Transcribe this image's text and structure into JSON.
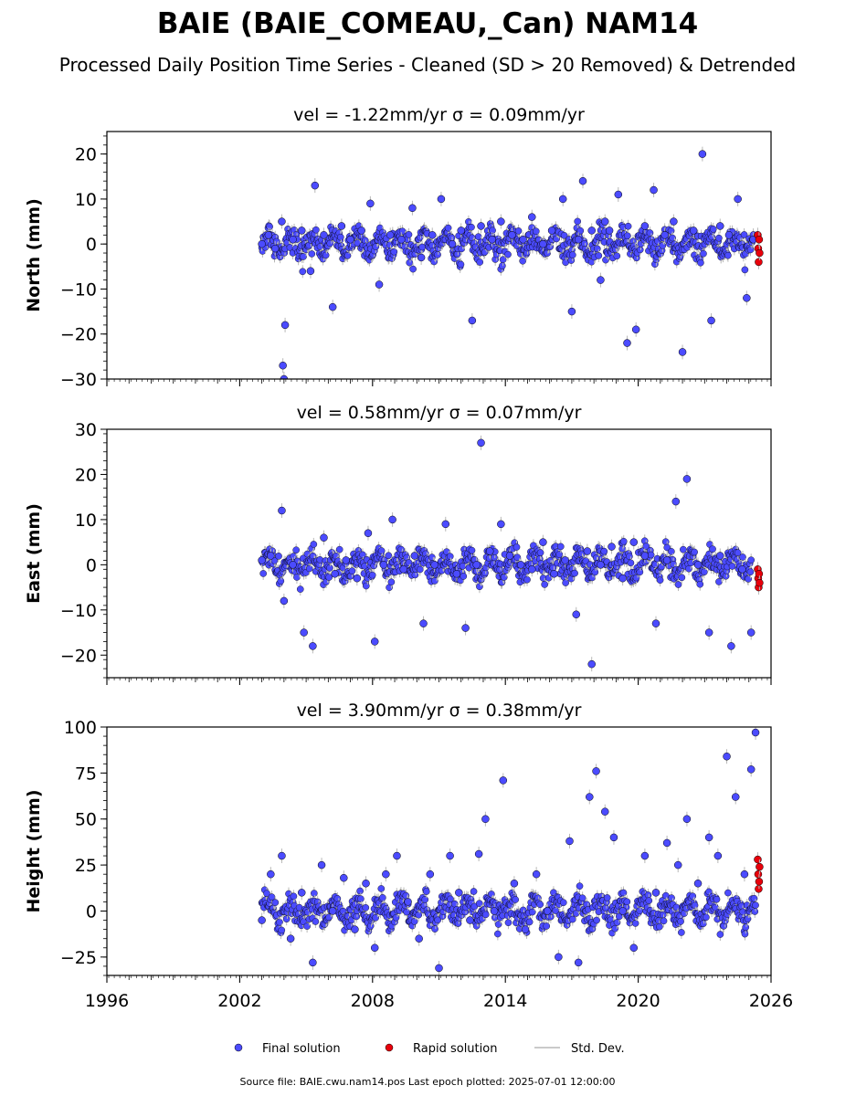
{
  "figure": {
    "title": "BAIE (BAIE_COMEAU,_Can) NAM14",
    "subtitle": "Processed Daily Position Time Series - Cleaned (SD > 20 Removed) & Detrended",
    "footer": "Source file: BAIE.cwu.nam14.pos  Last epoch plotted: 2025-07-01 12:00:00"
  },
  "legend": {
    "final": "Final solution",
    "rapid": "Rapid solution",
    "std": "Std. Dev."
  },
  "colors": {
    "final": "#4b4bff",
    "rapid": "#e8000b",
    "std": "#b8b8b8",
    "edge": "#000000"
  },
  "chart_data": [
    {
      "type": "scatter",
      "title": "vel = -1.22mm/yr   σ = 0.09mm/yr",
      "ylabel": "North (mm)",
      "xlabel": "",
      "xlim": [
        1996,
        2026
      ],
      "ylim": [
        -30,
        25
      ],
      "xticks": [
        1996,
        2002,
        2008,
        2014,
        2020,
        2026
      ],
      "yticks": [
        -30,
        -20,
        -10,
        0,
        10,
        20
      ],
      "series": [
        {
          "name": "Final solution",
          "x": [
            2003.0,
            2003.3,
            2003.6,
            2003.9,
            2003.95,
            2004.0,
            2004.05,
            2004.4,
            2004.8,
            2005.2,
            2005.4,
            2005.8,
            2006.2,
            2006.6,
            2007.0,
            2007.5,
            2007.9,
            2008.3,
            2008.8,
            2009.3,
            2009.8,
            2010.2,
            2010.7,
            2011.1,
            2011.6,
            2012.0,
            2012.5,
            2012.9,
            2013.4,
            2013.8,
            2014.3,
            2014.8,
            2015.2,
            2015.7,
            2016.1,
            2016.6,
            2017.0,
            2017.3,
            2017.5,
            2017.9,
            2018.3,
            2018.5,
            2018.7,
            2019.1,
            2019.5,
            2019.9,
            2020.3,
            2020.7,
            2021.2,
            2021.6,
            2022.0,
            2022.5,
            2022.9,
            2023.3,
            2023.7,
            2024.1,
            2024.5,
            2024.9,
            2025.2
          ],
          "y": [
            0,
            2,
            -1,
            5,
            -27,
            -30,
            -18,
            1,
            3,
            -6,
            13,
            2,
            -14,
            4,
            1,
            3,
            9,
            -9,
            2,
            1,
            8,
            -3,
            2,
            10,
            0,
            3,
            -17,
            4,
            1,
            5,
            2,
            1,
            6,
            0,
            3,
            10,
            -15,
            1,
            14,
            3,
            -8,
            5,
            3,
            11,
            -22,
            -19,
            4,
            12,
            2,
            5,
            -24,
            3,
            20,
            -17,
            4,
            2,
            10,
            -12,
            1
          ]
        },
        {
          "name": "Rapid solution",
          "x": [
            2025.4,
            2025.42,
            2025.44,
            2025.46,
            2025.48
          ],
          "y": [
            2,
            -1,
            -4,
            1,
            -2
          ]
        }
      ]
    },
    {
      "type": "scatter",
      "title": "vel = 0.58mm/yr   σ = 0.07mm/yr",
      "ylabel": "East (mm)",
      "xlabel": "",
      "xlim": [
        1996,
        2026
      ],
      "ylim": [
        -25,
        30
      ],
      "xticks": [
        1996,
        2002,
        2008,
        2014,
        2020,
        2026
      ],
      "yticks": [
        -20,
        -10,
        0,
        10,
        20,
        30
      ],
      "series": [
        {
          "name": "Final solution",
          "x": [
            2003.0,
            2003.4,
            2003.9,
            2004.0,
            2004.4,
            2004.9,
            2005.3,
            2005.8,
            2006.3,
            2006.8,
            2007.3,
            2007.8,
            2008.1,
            2008.5,
            2008.9,
            2009.4,
            2009.9,
            2010.3,
            2010.8,
            2011.3,
            2011.8,
            2012.2,
            2012.7,
            2012.9,
            2013.3,
            2013.8,
            2014.2,
            2014.7,
            2015.2,
            2015.7,
            2016.2,
            2016.7,
            2017.2,
            2017.7,
            2017.9,
            2018.3,
            2018.8,
            2019.3,
            2019.8,
            2020.3,
            2020.8,
            2021.3,
            2021.7,
            2022.2,
            2022.7,
            2023.2,
            2023.7,
            2024.2,
            2024.7,
            2025.1
          ],
          "y": [
            1,
            2,
            12,
            -8,
            0,
            -15,
            -18,
            6,
            -2,
            1,
            -3,
            7,
            -17,
            0,
            10,
            -1,
            2,
            -13,
            0,
            9,
            -2,
            -14,
            0,
            27,
            3,
            9,
            2,
            0,
            -1,
            5,
            -2,
            1,
            -11,
            3,
            -22,
            0,
            4,
            -3,
            5,
            2,
            -13,
            1,
            14,
            19,
            0,
            -15,
            2,
            -18,
            -1,
            -15
          ]
        },
        {
          "name": "Rapid solution",
          "x": [
            2025.4,
            2025.42,
            2025.44,
            2025.46,
            2025.48
          ],
          "y": [
            -1,
            -3,
            -5,
            -2,
            -4
          ]
        }
      ]
    },
    {
      "type": "scatter",
      "title": "vel = 3.90mm/yr   σ = 0.38mm/yr",
      "ylabel": "Height (mm)",
      "xlabel": "",
      "xlim": [
        1996,
        2026
      ],
      "ylim": [
        -35,
        100
      ],
      "xticks": [
        1996,
        2002,
        2008,
        2014,
        2020,
        2026
      ],
      "yticks": [
        -25,
        0,
        25,
        50,
        75,
        100
      ],
      "series": [
        {
          "name": "Final solution",
          "x": [
            2003.0,
            2003.4,
            2003.9,
            2004.3,
            2004.8,
            2005.3,
            2005.7,
            2006.2,
            2006.7,
            2007.2,
            2007.7,
            2008.1,
            2008.6,
            2009.1,
            2009.6,
            2010.1,
            2010.6,
            2011.0,
            2011.5,
            2011.9,
            2012.4,
            2012.8,
            2013.1,
            2013.5,
            2013.9,
            2014.4,
            2014.9,
            2015.4,
            2015.9,
            2016.4,
            2016.9,
            2017.3,
            2017.8,
            2018.1,
            2018.5,
            2018.9,
            2019.3,
            2019.8,
            2020.3,
            2020.8,
            2021.3,
            2021.8,
            2022.2,
            2022.7,
            2023.2,
            2023.6,
            2024.0,
            2024.4,
            2024.8,
            2025.1,
            2025.3
          ],
          "y": [
            -5,
            20,
            30,
            -15,
            10,
            -28,
            25,
            0,
            18,
            -10,
            15,
            -20,
            20,
            30,
            5,
            -15,
            20,
            -31,
            30,
            10,
            -5,
            31,
            50,
            0,
            71,
            15,
            -10,
            20,
            0,
            -25,
            38,
            -28,
            62,
            76,
            54,
            40,
            0,
            -20,
            30,
            10,
            37,
            25,
            50,
            15,
            40,
            30,
            84,
            62,
            20,
            77,
            97
          ]
        },
        {
          "name": "Rapid solution",
          "x": [
            2025.4,
            2025.42,
            2025.44,
            2025.46,
            2025.48
          ],
          "y": [
            28,
            20,
            12,
            16,
            24
          ]
        }
      ]
    }
  ]
}
